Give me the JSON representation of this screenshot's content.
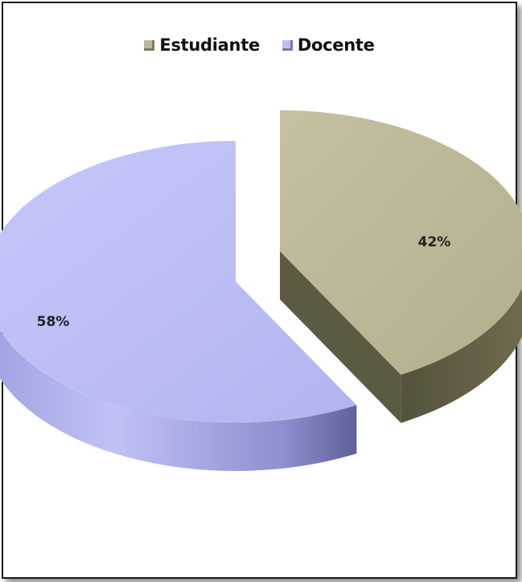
{
  "chart_data": {
    "type": "pie",
    "categories": [
      "Estudiante",
      "Docente"
    ],
    "values": [
      42,
      58
    ],
    "data_labels": [
      "42%",
      "58%"
    ],
    "legend_position": "top",
    "style": "3d-exploded",
    "colors": {
      "Estudiante": "#bcb896",
      "Docente": "#bbbdf6"
    }
  }
}
